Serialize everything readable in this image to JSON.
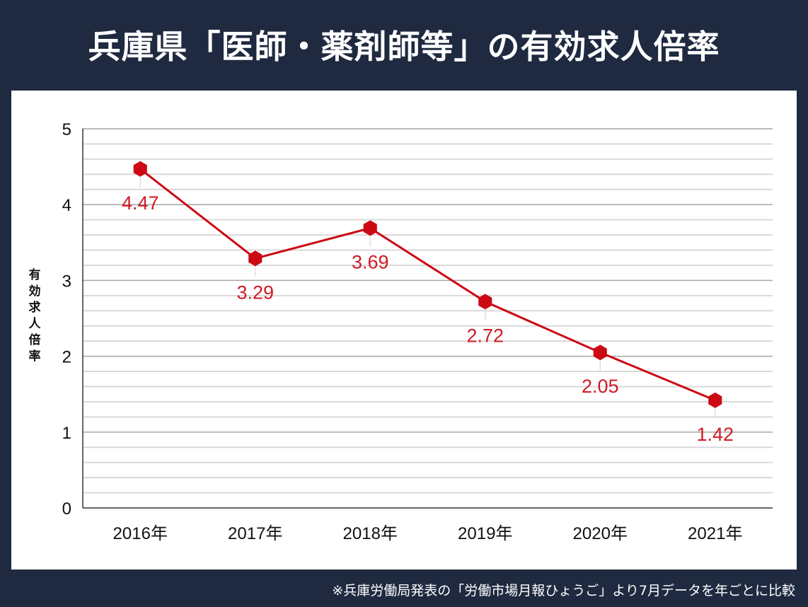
{
  "title": "兵庫県「医師・薬剤師等」の有効求人倍率",
  "footer": "※兵庫労働局発表の「労働市場月報ひょうご」より7月データを年ごとに比較",
  "chart_data": {
    "type": "line",
    "title": "",
    "xlabel": "",
    "ylabel": "有効求人倍率",
    "categories": [
      "2016年",
      "2017年",
      "2018年",
      "2019年",
      "2020年",
      "2021年"
    ],
    "values": [
      4.47,
      3.29,
      3.69,
      2.72,
      2.05,
      1.42
    ],
    "data_labels": [
      "4.47",
      "3.29",
      "3.69",
      "2.72",
      "2.05",
      "1.42"
    ],
    "ylim": [
      0,
      5
    ],
    "yticks": [
      "0",
      "1",
      "2",
      "3",
      "4",
      "5"
    ],
    "minor_grid_step": 0.2,
    "grid": true,
    "marker": "hexagon",
    "series_color": "#cc0a14"
  }
}
